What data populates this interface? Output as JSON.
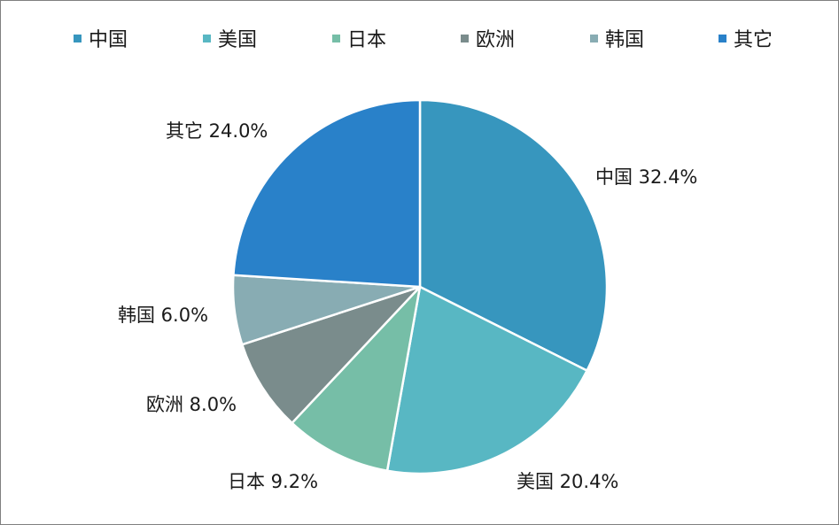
{
  "chart_data": {
    "type": "pie",
    "title": "",
    "categories": [
      "中国",
      "美国",
      "日本",
      "欧洲",
      "韩国",
      "其它"
    ],
    "values": [
      32.4,
      20.4,
      9.2,
      8.0,
      6.0,
      24.0
    ],
    "labels": [
      "中国 32.4%",
      "美国 20.4%",
      "日本 9.2%",
      "欧洲 8.0%",
      "韩国 6.0%",
      "其它 24.0%"
    ],
    "colors": [
      "#3796BE",
      "#58B7C3",
      "#76BEA7",
      "#7A8C8C",
      "#88ACB3",
      "#2981C9"
    ],
    "legend_position": "top",
    "unit": "%"
  }
}
